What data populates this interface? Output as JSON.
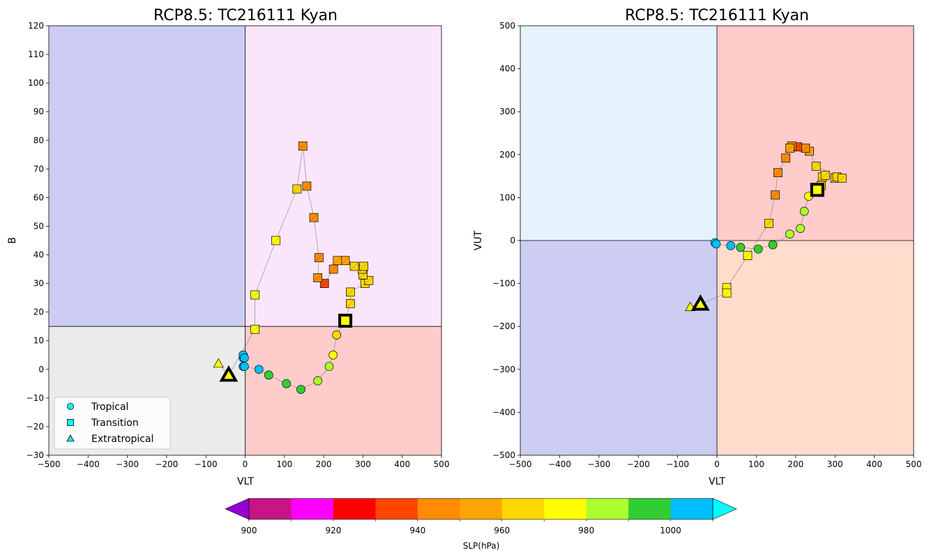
{
  "chart_data": [
    {
      "type": "scatter",
      "title": "RCP8.5: TC216111 Kyan",
      "xlabel": "VLT",
      "ylabel": "B",
      "xlim": [
        -500,
        500
      ],
      "ylim": [
        -30,
        120
      ],
      "xticks": [
        -500,
        -400,
        -300,
        -200,
        -100,
        0,
        100,
        200,
        300,
        400,
        500
      ],
      "yticks": [
        -30,
        -20,
        -10,
        0,
        10,
        20,
        30,
        40,
        50,
        60,
        70,
        80,
        90,
        100,
        110,
        120
      ],
      "quadrant_divider": {
        "x": 0,
        "y": 15
      },
      "quadrant_colors": {
        "upper_left": "#cdcdf3",
        "upper_right": "#fae6fa",
        "lower_left": "#ebebeb",
        "lower_right": "#ffcccc"
      },
      "legend": {
        "position": "lower-left",
        "entries": [
          {
            "label": "Tropical",
            "marker": "circle"
          },
          {
            "label": "Transition",
            "marker": "square"
          },
          {
            "label": "Extratropical",
            "marker": "triangle"
          }
        ]
      },
      "points": [
        {
          "x": -5,
          "y": 4,
          "slp": 1003,
          "phase": "tropical"
        },
        {
          "x": -5,
          "y": 5,
          "slp": 1003,
          "phase": "tropical"
        },
        {
          "x": -2,
          "y": 4,
          "slp": 1003,
          "phase": "tropical"
        },
        {
          "x": -5,
          "y": 1,
          "slp": 1003,
          "phase": "tropical"
        },
        {
          "x": -2,
          "y": 1,
          "slp": 1003,
          "phase": "tropical"
        },
        {
          "x": 35,
          "y": 0,
          "slp": 1003,
          "phase": "tropical"
        },
        {
          "x": 60,
          "y": -2,
          "slp": 993,
          "phase": "tropical"
        },
        {
          "x": 105,
          "y": -5,
          "slp": 993,
          "phase": "tropical"
        },
        {
          "x": 142,
          "y": -7,
          "slp": 993,
          "phase": "tropical"
        },
        {
          "x": 185,
          "y": -4,
          "slp": 983,
          "phase": "tropical"
        },
        {
          "x": 214,
          "y": 1,
          "slp": 983,
          "phase": "tropical"
        },
        {
          "x": 224,
          "y": 5,
          "slp": 973,
          "phase": "tropical"
        },
        {
          "x": 233,
          "y": 12,
          "slp": 968,
          "phase": "tropical"
        },
        {
          "x": 255,
          "y": 17,
          "slp": 973,
          "phase": "transition",
          "highlight": true
        },
        {
          "x": 268,
          "y": 23,
          "slp": 968,
          "phase": "transition"
        },
        {
          "x": 268,
          "y": 27,
          "slp": 968,
          "phase": "transition"
        },
        {
          "x": 305,
          "y": 30,
          "slp": 968,
          "phase": "transition"
        },
        {
          "x": 315,
          "y": 31,
          "slp": 968,
          "phase": "transition"
        },
        {
          "x": 300,
          "y": 33,
          "slp": 968,
          "phase": "transition"
        },
        {
          "x": 298,
          "y": 35,
          "slp": 968,
          "phase": "transition"
        },
        {
          "x": 302,
          "y": 36,
          "slp": 968,
          "phase": "transition"
        },
        {
          "x": 278,
          "y": 36,
          "slp": 963,
          "phase": "transition"
        },
        {
          "x": 255,
          "y": 38,
          "slp": 958,
          "phase": "transition"
        },
        {
          "x": 235,
          "y": 38,
          "slp": 958,
          "phase": "transition"
        },
        {
          "x": 225,
          "y": 35,
          "slp": 948,
          "phase": "transition"
        },
        {
          "x": 202,
          "y": 30,
          "slp": 933,
          "phase": "transition"
        },
        {
          "x": 185,
          "y": 32,
          "slp": 948,
          "phase": "transition"
        },
        {
          "x": 188,
          "y": 39,
          "slp": 948,
          "phase": "transition"
        },
        {
          "x": 175,
          "y": 53,
          "slp": 948,
          "phase": "transition"
        },
        {
          "x": 157,
          "y": 64,
          "slp": 948,
          "phase": "transition"
        },
        {
          "x": 147,
          "y": 78,
          "slp": 948,
          "phase": "transition"
        },
        {
          "x": 132,
          "y": 63,
          "slp": 963,
          "phase": "transition"
        },
        {
          "x": 78,
          "y": 45,
          "slp": 973,
          "phase": "transition"
        },
        {
          "x": 25,
          "y": 26,
          "slp": 973,
          "phase": "transition"
        },
        {
          "x": 25,
          "y": 14,
          "slp": 973,
          "phase": "transition"
        },
        {
          "x": -42,
          "y": -2,
          "slp": 973,
          "phase": "extratropical",
          "highlight": true
        },
        {
          "x": -68,
          "y": 2,
          "slp": 973,
          "phase": "extratropical"
        }
      ]
    },
    {
      "type": "scatter",
      "title": "RCP8.5: TC216111 Kyan",
      "xlabel": "VLT",
      "ylabel": "VUT",
      "xlim": [
        -500,
        500
      ],
      "ylim": [
        -500,
        500
      ],
      "xticks": [
        -500,
        -400,
        -300,
        -200,
        -100,
        0,
        100,
        200,
        300,
        400,
        500
      ],
      "yticks": [
        -500,
        -400,
        -300,
        -200,
        -100,
        0,
        100,
        200,
        300,
        400,
        500
      ],
      "quadrant_divider": {
        "x": 0,
        "y": 0
      },
      "quadrant_colors": {
        "upper_left": "#e5f3fd",
        "upper_right": "#ffcccc",
        "lower_left": "#cdcdf3",
        "lower_right": "#ffdccc"
      },
      "points": [
        {
          "x": -5,
          "y": -5,
          "slp": 1003,
          "phase": "tropical"
        },
        {
          "x": -2,
          "y": -8,
          "slp": 1003,
          "phase": "tropical"
        },
        {
          "x": 35,
          "y": -12,
          "slp": 1003,
          "phase": "tropical"
        },
        {
          "x": 60,
          "y": -16,
          "slp": 993,
          "phase": "tropical"
        },
        {
          "x": 105,
          "y": -20,
          "slp": 993,
          "phase": "tropical"
        },
        {
          "x": 142,
          "y": -10,
          "slp": 993,
          "phase": "tropical"
        },
        {
          "x": 185,
          "y": 15,
          "slp": 983,
          "phase": "tropical"
        },
        {
          "x": 212,
          "y": 28,
          "slp": 983,
          "phase": "tropical"
        },
        {
          "x": 222,
          "y": 68,
          "slp": 983,
          "phase": "tropical"
        },
        {
          "x": 233,
          "y": 103,
          "slp": 973,
          "phase": "tropical"
        },
        {
          "x": 255,
          "y": 118,
          "slp": 973,
          "phase": "transition",
          "highlight": true
        },
        {
          "x": 265,
          "y": 128,
          "slp": 968,
          "phase": "transition"
        },
        {
          "x": 268,
          "y": 148,
          "slp": 968,
          "phase": "transition"
        },
        {
          "x": 275,
          "y": 152,
          "slp": 968,
          "phase": "transition"
        },
        {
          "x": 300,
          "y": 145,
          "slp": 968,
          "phase": "transition"
        },
        {
          "x": 305,
          "y": 148,
          "slp": 968,
          "phase": "transition"
        },
        {
          "x": 318,
          "y": 145,
          "slp": 968,
          "phase": "transition"
        },
        {
          "x": 252,
          "y": 173,
          "slp": 963,
          "phase": "transition"
        },
        {
          "x": 235,
          "y": 208,
          "slp": 958,
          "phase": "transition"
        },
        {
          "x": 225,
          "y": 215,
          "slp": 948,
          "phase": "transition"
        },
        {
          "x": 205,
          "y": 218,
          "slp": 933,
          "phase": "transition"
        },
        {
          "x": 190,
          "y": 220,
          "slp": 948,
          "phase": "transition"
        },
        {
          "x": 185,
          "y": 215,
          "slp": 958,
          "phase": "transition"
        },
        {
          "x": 175,
          "y": 192,
          "slp": 948,
          "phase": "transition"
        },
        {
          "x": 155,
          "y": 158,
          "slp": 948,
          "phase": "transition"
        },
        {
          "x": 148,
          "y": 106,
          "slp": 948,
          "phase": "transition"
        },
        {
          "x": 132,
          "y": 40,
          "slp": 963,
          "phase": "transition"
        },
        {
          "x": 78,
          "y": -35,
          "slp": 973,
          "phase": "transition"
        },
        {
          "x": 25,
          "y": -110,
          "slp": 973,
          "phase": "transition"
        },
        {
          "x": 25,
          "y": -122,
          "slp": 973,
          "phase": "transition"
        },
        {
          "x": -42,
          "y": -148,
          "slp": 973,
          "phase": "extratropical",
          "highlight": true
        },
        {
          "x": -68,
          "y": -155,
          "slp": 973,
          "phase": "extratropical"
        }
      ]
    }
  ],
  "colorbar": {
    "label": "SLP(hPa)",
    "ticks": [
      900,
      920,
      940,
      960,
      980,
      1000
    ],
    "bounds": [
      900,
      910,
      920,
      930,
      940,
      950,
      960,
      970,
      980,
      990,
      1000,
      1010
    ],
    "colors": [
      "#c71585",
      "#ff00ff",
      "#ff0000",
      "#ff4500",
      "#ff8c00",
      "#ffa500",
      "#ffd700",
      "#ffff00",
      "#adff2f",
      "#32cd32",
      "#00bfff"
    ],
    "under_color": "#9400d3",
    "over_color": "#00ffff"
  }
}
